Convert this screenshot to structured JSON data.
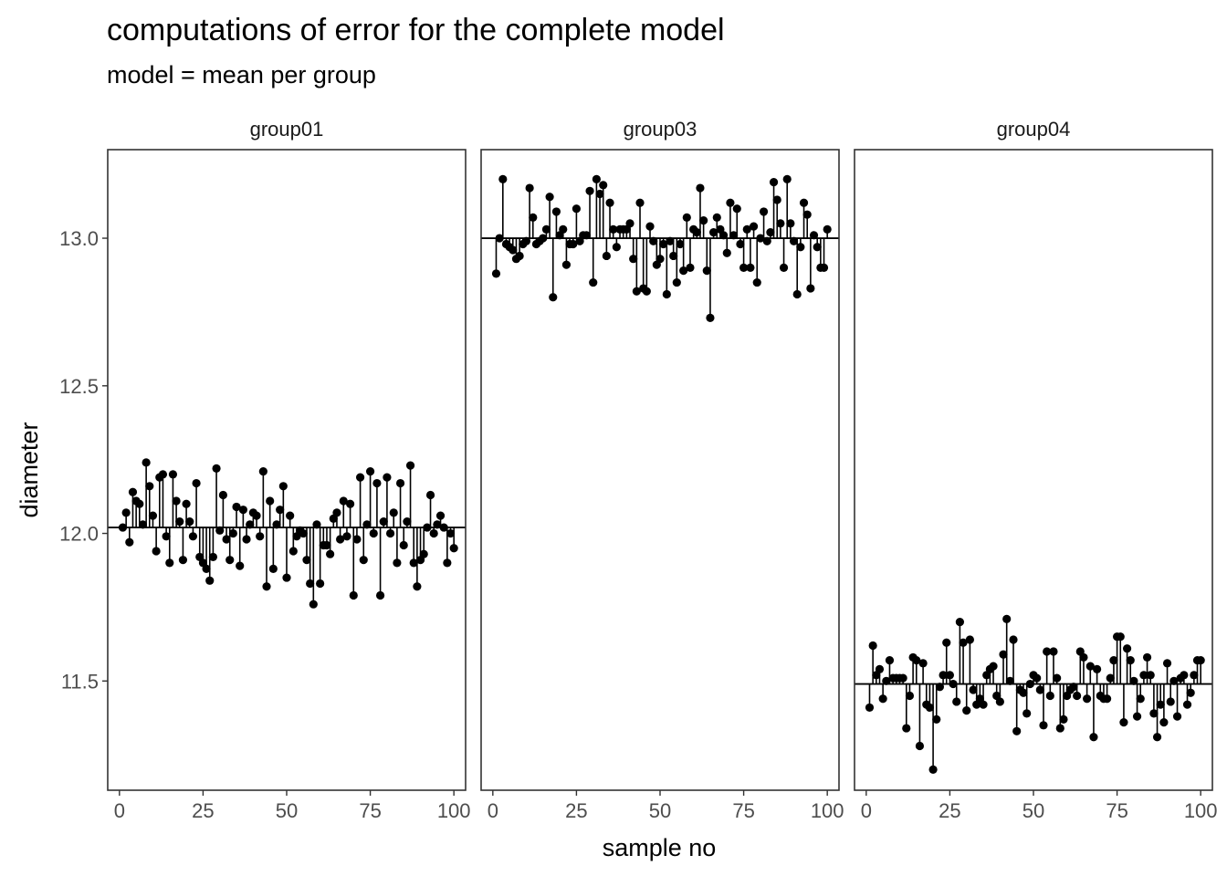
{
  "chart_data": {
    "type": "scatter",
    "title": "computations of error for the complete model",
    "subtitle": "model = mean per group",
    "xlabel": "sample no",
    "ylabel": "diameter",
    "xlim": [
      -3.5,
      103.5
    ],
    "ylim": [
      11.13,
      13.3
    ],
    "xticks": [
      0,
      25,
      50,
      75,
      100
    ],
    "yticks": [
      11.5,
      12.0,
      12.5,
      13.0
    ],
    "xtick_labels": [
      "0",
      "25",
      "50",
      "75",
      "100"
    ],
    "ytick_labels": [
      "11.5",
      "12.0",
      "12.5",
      "13.0"
    ],
    "grid": false,
    "marker_color": "#000000",
    "line_color": "#000000",
    "panels": [
      {
        "name": "group01",
        "mean": 12.02,
        "x_start": 1,
        "values": [
          12.02,
          12.07,
          11.97,
          12.14,
          12.11,
          12.1,
          12.03,
          12.24,
          12.16,
          12.06,
          11.94,
          12.19,
          12.2,
          11.99,
          11.9,
          12.2,
          12.11,
          12.04,
          11.91,
          12.1,
          12.04,
          11.99,
          12.17,
          11.92,
          11.9,
          11.88,
          11.84,
          11.92,
          12.22,
          12.01,
          12.13,
          11.98,
          11.91,
          12.0,
          12.09,
          11.89,
          12.08,
          11.98,
          12.03,
          12.07,
          12.06,
          11.99,
          12.21,
          11.82,
          12.11,
          11.88,
          12.03,
          12.08,
          12.16,
          11.85,
          12.06,
          11.94,
          11.99,
          12.01,
          12.0,
          11.91,
          11.83,
          11.76,
          12.03,
          11.83,
          11.96,
          11.96,
          11.93,
          12.05,
          12.07,
          11.98,
          12.11,
          11.99,
          12.1,
          11.79,
          11.98,
          12.19,
          11.91,
          12.03,
          12.21,
          12.0,
          12.17,
          11.79,
          12.04,
          12.19,
          12.0,
          12.07,
          11.9,
          12.17,
          11.96,
          12.04,
          12.23,
          11.9,
          11.82,
          11.91,
          11.93,
          12.02,
          12.13,
          12.0,
          12.03,
          12.06,
          12.02,
          11.9,
          12.0,
          11.95
        ]
      },
      {
        "name": "group03",
        "mean": 13.0,
        "x_start": 1,
        "values": [
          12.88,
          13.0,
          13.2,
          12.98,
          12.97,
          12.96,
          12.93,
          12.94,
          12.98,
          12.99,
          13.17,
          13.07,
          12.98,
          12.99,
          13.0,
          13.03,
          13.14,
          12.8,
          13.09,
          13.01,
          13.03,
          12.91,
          12.98,
          12.98,
          13.1,
          12.99,
          13.01,
          13.01,
          13.16,
          12.85,
          13.2,
          13.15,
          13.18,
          12.94,
          13.12,
          13.03,
          12.97,
          13.03,
          13.03,
          13.03,
          13.05,
          12.93,
          12.82,
          13.12,
          12.83,
          12.82,
          13.04,
          12.99,
          12.91,
          12.93,
          12.98,
          12.81,
          12.99,
          12.94,
          12.85,
          12.98,
          12.89,
          13.07,
          12.9,
          13.03,
          13.02,
          13.17,
          13.06,
          12.89,
          12.73,
          13.02,
          13.07,
          13.03,
          13.01,
          12.95,
          13.12,
          13.01,
          13.1,
          12.98,
          12.9,
          13.03,
          12.9,
          13.04,
          12.85,
          13.0,
          13.09,
          12.99,
          13.02,
          13.19,
          13.13,
          13.05,
          12.9,
          13.2,
          13.05,
          12.99,
          12.81,
          12.97,
          13.12,
          13.08,
          12.83,
          13.01,
          12.97,
          12.9,
          12.9,
          13.03
        ]
      },
      {
        "name": "group04",
        "mean": 11.49,
        "x_start": 1,
        "values": [
          11.41,
          11.62,
          11.52,
          11.54,
          11.44,
          11.5,
          11.57,
          11.51,
          11.51,
          11.51,
          11.51,
          11.34,
          11.45,
          11.58,
          11.57,
          11.28,
          11.56,
          11.42,
          11.41,
          11.2,
          11.37,
          11.48,
          11.52,
          11.63,
          11.52,
          11.49,
          11.43,
          11.7,
          11.63,
          11.4,
          11.64,
          11.47,
          11.42,
          11.44,
          11.42,
          11.52,
          11.54,
          11.55,
          11.45,
          11.43,
          11.59,
          11.71,
          11.5,
          11.64,
          11.33,
          11.47,
          11.46,
          11.39,
          11.49,
          11.52,
          11.51,
          11.47,
          11.35,
          11.6,
          11.45,
          11.6,
          11.51,
          11.34,
          11.37,
          11.45,
          11.47,
          11.48,
          11.45,
          11.6,
          11.58,
          11.44,
          11.55,
          11.31,
          11.54,
          11.45,
          11.44,
          11.44,
          11.51,
          11.57,
          11.65,
          11.65,
          11.36,
          11.61,
          11.57,
          11.5,
          11.38,
          11.44,
          11.52,
          11.58,
          11.52,
          11.39,
          11.31,
          11.42,
          11.36,
          11.56,
          11.43,
          11.5,
          11.38,
          11.51,
          11.52,
          11.42,
          11.46,
          11.52,
          11.57,
          11.57
        ]
      }
    ]
  }
}
